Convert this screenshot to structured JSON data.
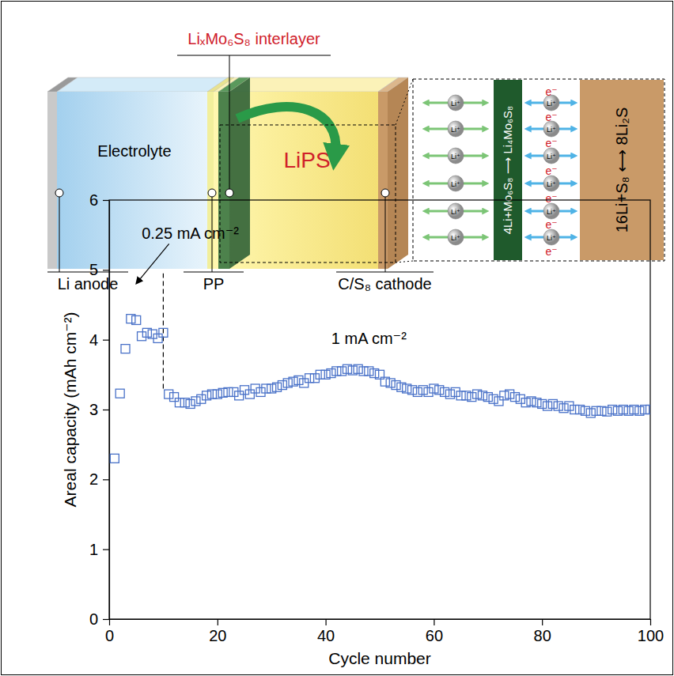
{
  "diagram": {
    "interlayer_label": "LiₓMo₆S₈ interlayer",
    "electrolyte": "Electrolyte",
    "lips": "LiPS",
    "labels": {
      "anode": "Li anode",
      "separator": "PP",
      "cathode": "C/S₈ cathode"
    },
    "inset": {
      "ion": "Li⁺",
      "electron": "e⁻",
      "interlayer_reaction": "4Li+Mo₆S₈ ⟶ Li₄Mo₆S₈",
      "cathode_reaction": "16Li+S₈ ⟷ 8Li₂S"
    }
  },
  "chart_data": {
    "type": "scatter",
    "x_label": "Cycle number",
    "y_label": "Areal capacity (mAh cm⁻²)",
    "x": [
      1,
      2,
      3,
      4,
      5,
      6,
      7,
      8,
      9,
      10,
      11,
      12,
      13,
      14,
      15,
      16,
      17,
      18,
      19,
      20,
      21,
      22,
      23,
      24,
      25,
      26,
      27,
      28,
      29,
      30,
      31,
      32,
      33,
      34,
      35,
      36,
      37,
      38,
      39,
      40,
      41,
      42,
      43,
      44,
      45,
      46,
      47,
      48,
      49,
      50,
      51,
      52,
      53,
      54,
      55,
      56,
      57,
      58,
      59,
      60,
      61,
      62,
      63,
      64,
      65,
      66,
      67,
      68,
      69,
      70,
      71,
      72,
      73,
      74,
      75,
      76,
      77,
      78,
      79,
      80,
      81,
      82,
      83,
      84,
      85,
      86,
      87,
      88,
      89,
      90,
      91,
      92,
      93,
      94,
      95,
      96,
      97,
      98,
      99,
      100
    ],
    "values": [
      2.3,
      3.23,
      3.87,
      4.3,
      4.28,
      4.05,
      4.1,
      4.08,
      4.02,
      4.1,
      3.22,
      3.18,
      3.1,
      3.1,
      3.08,
      3.12,
      3.15,
      3.2,
      3.22,
      3.22,
      3.24,
      3.25,
      3.25,
      3.2,
      3.28,
      3.22,
      3.3,
      3.25,
      3.3,
      3.3,
      3.32,
      3.35,
      3.38,
      3.4,
      3.42,
      3.38,
      3.45,
      3.45,
      3.5,
      3.5,
      3.52,
      3.55,
      3.55,
      3.58,
      3.56,
      3.58,
      3.55,
      3.55,
      3.52,
      3.5,
      3.4,
      3.38,
      3.35,
      3.32,
      3.3,
      3.28,
      3.25,
      3.28,
      3.25,
      3.3,
      3.28,
      3.25,
      3.22,
      3.25,
      3.2,
      3.2,
      3.18,
      3.22,
      3.2,
      3.18,
      3.15,
      3.12,
      3.2,
      3.22,
      3.18,
      3.15,
      3.1,
      3.12,
      3.1,
      3.08,
      3.05,
      3.08,
      3.05,
      3.02,
      3.05,
      3.0,
      3.0,
      2.98,
      2.95,
      2.98,
      2.98,
      2.97,
      3.0,
      2.98,
      3.0,
      2.98,
      3.0,
      2.98,
      3.0,
      3.0
    ],
    "color": "#4a72c8",
    "marker": "square",
    "xlim": [
      0,
      100
    ],
    "xticks": [
      0,
      20,
      40,
      60,
      80,
      100
    ],
    "ylim": [
      0,
      6
    ],
    "yticks": [
      0,
      1,
      2,
      3,
      4,
      5,
      6
    ],
    "grid": false,
    "annotations": [
      {
        "text": "0.25 mA cm⁻²",
        "x": 15,
        "y": 5.5,
        "arrow_to": [
          5.5,
          4.85
        ]
      },
      {
        "text": "1 mA cm⁻²",
        "x": 48,
        "y": 4.0
      }
    ],
    "vlines": [
      {
        "x": 10,
        "y": [
          3.3,
          4.95
        ],
        "line_style": "dashed"
      }
    ]
  }
}
